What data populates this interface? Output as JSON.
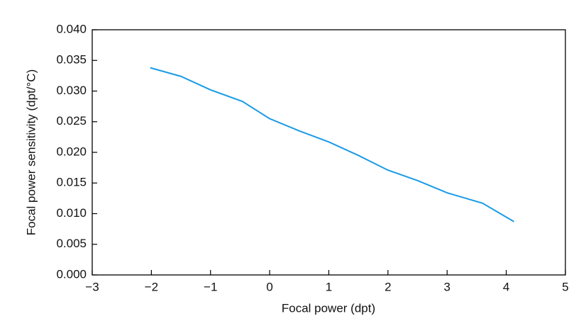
{
  "chart_data": {
    "type": "line",
    "xlabel": "Focal power (dpt)",
    "ylabel": "Focal power sensitivity (dpt/°C)",
    "x": [
      -2.02,
      -1.5,
      -1.0,
      -0.46,
      0.0,
      0.5,
      1.0,
      1.5,
      2.0,
      2.5,
      3.0,
      3.6,
      4.13
    ],
    "series": [
      {
        "color": "#1a9be6",
        "values": [
          0.0338,
          0.0324,
          0.0302,
          0.0283,
          0.0255,
          0.0235,
          0.0217,
          0.0195,
          0.0171,
          0.0154,
          0.0134,
          0.0117,
          0.0087
        ]
      }
    ],
    "xlim": [
      -3,
      5
    ],
    "xticks": [
      {
        "value": -3,
        "label": "−3"
      },
      {
        "value": -2,
        "label": "−2"
      },
      {
        "value": -1,
        "label": "−1"
      },
      0,
      1,
      2,
      3,
      4,
      5
    ],
    "ylim": [
      0,
      0.04
    ],
    "yticks": [
      {
        "value": 0,
        "label": "0.000"
      },
      {
        "value": 0.005,
        "label": "0.005"
      },
      {
        "value": 0.01,
        "label": "0.010"
      },
      {
        "value": 0.015,
        "label": "0.015"
      },
      {
        "value": 0.02,
        "label": "0.020"
      },
      {
        "value": 0.025,
        "label": "0.025"
      },
      {
        "value": 0.03,
        "label": "0.030"
      },
      {
        "value": 0.035,
        "label": "0.035"
      },
      {
        "value": 0.04,
        "label": "0.040"
      }
    ],
    "grid": false
  }
}
